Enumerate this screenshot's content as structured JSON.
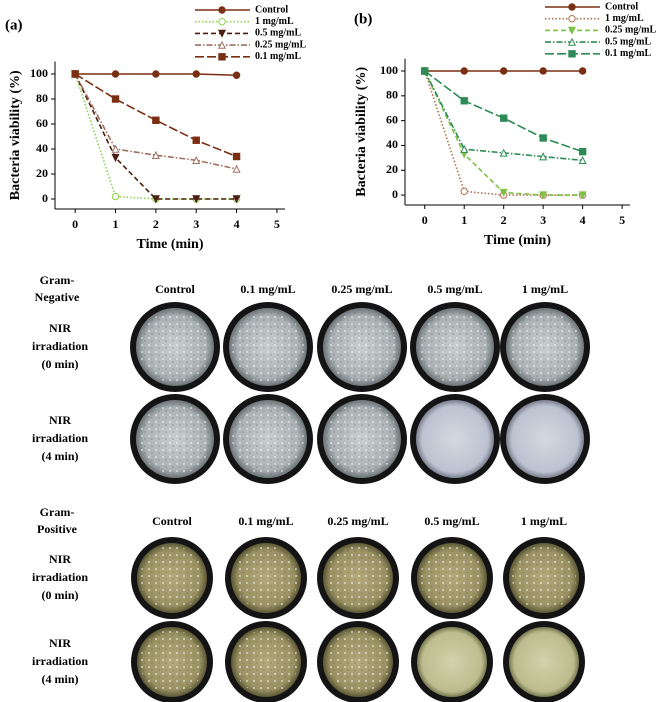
{
  "chart_data": [
    {
      "type": "line",
      "title": "(a)",
      "xlabel": "Time (min)",
      "ylabel": "Bacteria viability (%)",
      "x": [
        0,
        1,
        2,
        3,
        4
      ],
      "xlim": [
        -0.5,
        5.2
      ],
      "xticks": [
        0,
        1,
        2,
        3,
        4,
        5
      ],
      "ylim": [
        -8,
        110
      ],
      "yticks": [
        0,
        20,
        40,
        60,
        80,
        100
      ],
      "series": [
        {
          "name": "Control",
          "color": "#7a2e12",
          "linestyle": "solid",
          "marker": "circle",
          "values": [
            100,
            100,
            100,
            100,
            99
          ]
        },
        {
          "name": "1 mg/mL",
          "color": "#8fd14f",
          "linestyle": "dotted",
          "marker": "circle-open",
          "values": [
            100,
            2,
            0,
            0,
            0
          ]
        },
        {
          "name": "0.5 mg/mL",
          "color": "#4a1f10",
          "linestyle": "dashed",
          "marker": "triangle-down",
          "values": [
            100,
            33,
            0,
            0,
            0
          ]
        },
        {
          "name": "0.25 mg/mL",
          "color": "#a07060",
          "linestyle": "dashdot",
          "marker": "triangle-open",
          "values": [
            100,
            40,
            35,
            31,
            24
          ]
        },
        {
          "name": "0.1 mg/mL",
          "color": "#7a2e12",
          "linestyle": "longdash",
          "marker": "square",
          "values": [
            100,
            80,
            63,
            47,
            34
          ]
        }
      ]
    },
    {
      "type": "line",
      "title": "(b)",
      "xlabel": "Time (min)",
      "ylabel": "Bacteria viability (%)",
      "x": [
        0,
        1,
        2,
        3,
        4
      ],
      "xlim": [
        -0.5,
        5.2
      ],
      "xticks": [
        0,
        1,
        2,
        3,
        4,
        5
      ],
      "ylim": [
        -8,
        110
      ],
      "yticks": [
        0,
        20,
        40,
        60,
        80,
        100
      ],
      "series": [
        {
          "name": "Control",
          "color": "#7a2e12",
          "linestyle": "solid",
          "marker": "circle",
          "values": [
            100,
            100,
            100,
            100,
            100
          ]
        },
        {
          "name": "1 mg/mL",
          "color": "#b07050",
          "linestyle": "dotted",
          "marker": "circle-open",
          "values": [
            100,
            3,
            0,
            0,
            0
          ]
        },
        {
          "name": "0.25 mg/mL",
          "color": "#7dc242",
          "linestyle": "dashed",
          "marker": "triangle-down",
          "values": [
            100,
            33,
            2,
            0,
            0
          ]
        },
        {
          "name": "0.5 mg/mL",
          "color": "#2e8b57",
          "linestyle": "dashdot",
          "marker": "triangle-open",
          "values": [
            100,
            37,
            34,
            31,
            28
          ]
        },
        {
          "name": "0.1 mg/mL",
          "color": "#2e8b57",
          "linestyle": "longdash",
          "marker": "square",
          "values": [
            100,
            76,
            62,
            46,
            35
          ]
        }
      ]
    }
  ],
  "plates": {
    "groups": [
      {
        "label": [
          "Gram-",
          "Negative"
        ],
        "columns": [
          "Control",
          "0.1 mg/mL",
          "0.25 mg/mL",
          "0.5 mg/mL",
          "1 mg/mL"
        ],
        "rows": [
          [
            "NIR",
            "irradiation",
            "(0 min)"
          ],
          [
            "NIR",
            "irradiation",
            "(4 min)"
          ]
        ]
      },
      {
        "label": [
          "Gram-",
          "Positive"
        ],
        "columns": [
          "Control",
          "0.1 mg/mL",
          "0.25 mg/mL",
          "0.5 mg/mL",
          "1 mg/mL"
        ],
        "rows": [
          [
            "NIR",
            "irradiation",
            "(0 min)"
          ],
          [
            "NIR",
            "irradiation",
            "(4 min)"
          ]
        ]
      }
    ]
  }
}
